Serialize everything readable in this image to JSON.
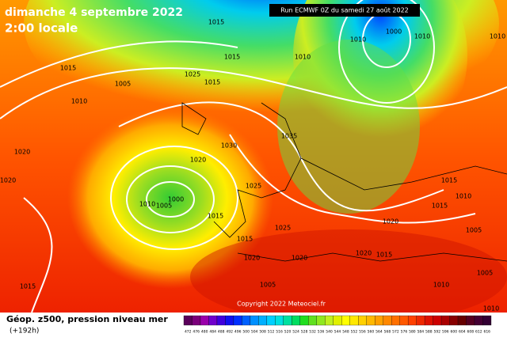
{
  "header": {
    "date": "dimanche 4 septembre 2022",
    "time": "2:00 locale",
    "run": "Run ECMWF 0Z du samedi 27 août 2022"
  },
  "isobars": {
    "labels": [
      "1015",
      "1015",
      "1010",
      "1000",
      "1010",
      "1010",
      "1010",
      "1015",
      "1005",
      "1025",
      "1015",
      "1010",
      "1035",
      "1030",
      "1020",
      "1020",
      "1020",
      "1025",
      "1000",
      "1010",
      "1005",
      "1015",
      "1025",
      "1020",
      "1015",
      "1010",
      "1015",
      "1005",
      "1015",
      "1020",
      "1020",
      "1020",
      "1015",
      "1005",
      "1010",
      "1005",
      "1015",
      "1010"
    ]
  },
  "footer": {
    "title": "Géop. z500, pression niveau mer",
    "lead": "(+192h)",
    "copyright": "Copyright 2022 Meteociel.fr"
  },
  "colorbar": {
    "ticks": [
      472,
      476,
      480,
      484,
      488,
      492,
      496,
      500,
      504,
      508,
      512,
      516,
      520,
      524,
      528,
      532,
      536,
      540,
      544,
      548,
      552,
      556,
      560,
      564,
      568,
      572,
      576,
      580,
      584,
      588,
      592,
      596,
      600,
      604,
      608,
      612,
      616
    ]
  }
}
